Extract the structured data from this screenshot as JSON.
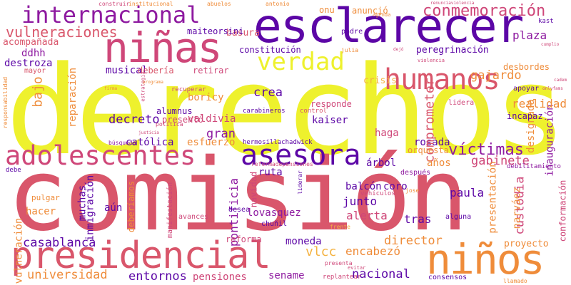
{
  "palette": {
    "yellow": "#eef12d",
    "red": "#d9566b",
    "purple": "#5c06a6",
    "orange": "#ef8c3a",
    "magenta": "#b12a92",
    "pink": "#cf4779",
    "violet": "#8e1aa0",
    "lightorange": "#f4b240"
  },
  "words": [
    {
      "text": "derechos",
      "color": "yellow"
    },
    {
      "text": "comisión",
      "color": "red"
    },
    {
      "text": "esclarecer",
      "color": "purple"
    },
    {
      "text": "presidencial",
      "color": "red"
    },
    {
      "text": "internacional",
      "color": "violet"
    },
    {
      "text": "niñas",
      "color": "pink"
    },
    {
      "text": "niños",
      "color": "orange"
    },
    {
      "text": "conmemoración",
      "color": "pink"
    },
    {
      "text": "humanos",
      "color": "red"
    },
    {
      "text": "verdad",
      "color": "yellow"
    },
    {
      "text": "asesora",
      "color": "purple"
    },
    {
      "text": "adolescentes",
      "color": "pink"
    },
    {
      "text": "vulneraciones",
      "color": "red"
    },
    {
      "text": "víctimas",
      "color": "violet"
    },
    {
      "text": "universidad",
      "color": "orange"
    },
    {
      "text": "casablanca",
      "color": "purple"
    },
    {
      "text": "sename",
      "color": "violet"
    },
    {
      "text": "entornos",
      "color": "purple"
    },
    {
      "text": "nacional",
      "color": "purple"
    },
    {
      "text": "pensiones",
      "color": "pink"
    },
    {
      "text": "encabezó",
      "color": "orange"
    },
    {
      "text": "director",
      "color": "orange"
    },
    {
      "text": "proyecto",
      "color": "orange"
    },
    {
      "text": "custodia",
      "color": "pink"
    },
    {
      "text": "gabinete",
      "color": "pink"
    },
    {
      "text": "inauguración",
      "color": "violet"
    },
    {
      "text": "realidad",
      "color": "orange"
    },
    {
      "text": "gajardo",
      "color": "orange"
    },
    {
      "text": "plaza",
      "color": "violet"
    },
    {
      "text": "peregrinación",
      "color": "purple"
    },
    {
      "text": "decreto",
      "color": "purple"
    },
    {
      "text": "crea",
      "color": "purple"
    },
    {
      "text": "gran",
      "color": "violet"
    },
    {
      "text": "católica",
      "color": "purple"
    },
    {
      "text": "rosada",
      "color": "purple"
    },
    {
      "text": "moneda",
      "color": "purple"
    },
    {
      "text": "junto",
      "color": "purple"
    },
    {
      "text": "alerta",
      "color": "pink"
    },
    {
      "text": "tras",
      "color": "purple"
    },
    {
      "text": "paula",
      "color": "purple"
    },
    {
      "text": "coro",
      "color": "purple"
    },
    {
      "text": "balcón",
      "color": "purple"
    },
    {
      "text": "acompañada",
      "color": "red"
    },
    {
      "text": "ddhh",
      "color": "violet"
    },
    {
      "text": "destroza",
      "color": "purple"
    },
    {
      "text": "mayor",
      "color": "red"
    },
    {
      "text": "bajo",
      "color": "orange"
    },
    {
      "text": "musical",
      "color": "purple"
    },
    {
      "text": "debería",
      "color": "red"
    },
    {
      "text": "retirar",
      "color": "pink"
    },
    {
      "text": "boricy",
      "color": "orange"
    },
    {
      "text": "alumnus",
      "color": "purple"
    },
    {
      "text": "presentó",
      "color": "pink"
    },
    {
      "text": "valdivia",
      "color": "pink"
    },
    {
      "text": "esfuerzo",
      "color": "orange"
    },
    {
      "text": "hermosillachadwick",
      "color": "purple"
    },
    {
      "text": "kaiser",
      "color": "purple"
    },
    {
      "text": "haga",
      "color": "pink"
    },
    {
      "text": "responde",
      "color": "pink"
    },
    {
      "text": "constitución",
      "color": "purple"
    },
    {
      "text": "basura",
      "color": "red"
    },
    {
      "text": "maiteorsini",
      "color": "purple"
    },
    {
      "text": "anunció",
      "color": "orange"
    },
    {
      "text": "desbordes",
      "color": "orange"
    },
    {
      "text": "reparación",
      "color": "orange"
    },
    {
      "text": "comprometer",
      "color": "red"
    },
    {
      "text": "designada",
      "color": "orange"
    },
    {
      "text": "presentación",
      "color": "orange"
    },
    {
      "text": "narváez",
      "color": "orange"
    },
    {
      "text": "conformación",
      "color": "pink"
    },
    {
      "text": "vulneración",
      "color": "orange"
    },
    {
      "text": "hacer",
      "color": "orange"
    },
    {
      "text": "pulgar",
      "color": "orange"
    },
    {
      "text": "aún",
      "color": "purple"
    },
    {
      "text": "muchas",
      "color": "purple"
    },
    {
      "text": "inmigración",
      "color": "purple"
    },
    {
      "text": "pontificia",
      "color": "violet"
    },
    {
      "text": "navidad",
      "color": "pink"
    },
    {
      "text": "ruta",
      "color": "purple"
    },
    {
      "text": "árbol",
      "color": "purple"
    },
    {
      "text": "orquesta",
      "color": "orange"
    },
    {
      "text": "años",
      "color": "orange"
    },
    {
      "text": "reforma",
      "color": "pink"
    },
    {
      "text": "desea",
      "color": "purple"
    },
    {
      "text": "lovasquez",
      "color": "violet"
    },
    {
      "text": "chuñil",
      "color": "purple"
    },
    {
      "text": "manifestación",
      "color": "pink"
    },
    {
      "text": "deberíamos",
      "color": "orange"
    },
    {
      "text": "avances",
      "color": "pink"
    },
    {
      "text": "vlcc",
      "color": "lightorange"
    },
    {
      "text": "crisis",
      "color": "lightorange"
    },
    {
      "text": "incapaz",
      "color": "purple"
    },
    {
      "text": "lidera",
      "color": "pink"
    },
    {
      "text": "apoyar",
      "color": "purple"
    },
    {
      "text": "onu",
      "color": "orange"
    },
    {
      "text": "kast",
      "color": "purple"
    },
    {
      "text": "padre",
      "color": "purple"
    },
    {
      "text": "julia",
      "color": "orange"
    },
    {
      "text": "frente",
      "color": "lightorange"
    },
    {
      "text": "control",
      "color": "red"
    },
    {
      "text": "después",
      "color": "violet"
    },
    {
      "text": "debilitamiento",
      "color": "violet"
    },
    {
      "text": "alguna",
      "color": "purple"
    },
    {
      "text": "debe",
      "color": "purple"
    },
    {
      "text": "vehículos",
      "color": "pink"
    },
    {
      "text": "reformadepensiones",
      "color": "pink"
    },
    {
      "text": "carabineros",
      "color": "purple"
    },
    {
      "text": "recuperar",
      "color": "pink"
    },
    {
      "text": "búsqueda",
      "color": "violet"
    },
    {
      "text": "responsabilidad",
      "color": "orange"
    },
    {
      "text": "estrategia",
      "color": "pink"
    },
    {
      "text": "antonio",
      "color": "orange"
    },
    {
      "text": "abuelos",
      "color": "orange"
    },
    {
      "text": "agenda",
      "color": "orange"
    },
    {
      "text": "institucional",
      "color": "orange"
    },
    {
      "text": "construir",
      "color": "pink"
    },
    {
      "text": "violencia",
      "color": "pink"
    },
    {
      "text": "consensos",
      "color": "purple"
    },
    {
      "text": "replantear",
      "color": "pink"
    },
    {
      "text": "llamado",
      "color": "orange"
    },
    {
      "text": "presenta",
      "color": "pink"
    },
    {
      "text": "evitar",
      "color": "pink"
    },
    {
      "text": "liderar",
      "color": "purple"
    },
    {
      "text": "jose",
      "color": "orange"
    },
    {
      "text": "política",
      "color": "pink"
    },
    {
      "text": "programa",
      "color": "orange"
    },
    {
      "text": "firma",
      "color": "orange"
    },
    {
      "text": "justicia",
      "color": "pink"
    },
    {
      "text": "dejó",
      "color": "pink"
    },
    {
      "text": "renunciaviolencia",
      "color": "pink"
    },
    {
      "text": "cumplio",
      "color": "pink"
    },
    {
      "text": "onlyfams",
      "color": "pink"
    },
    {
      "text": "cadem",
      "color": "pink"
    }
  ]
}
